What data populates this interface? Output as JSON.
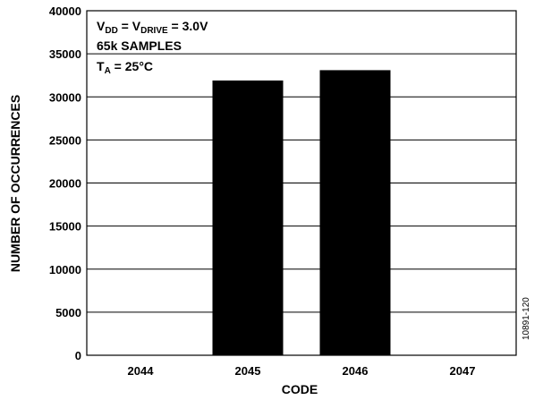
{
  "chart_data": {
    "type": "bar",
    "title": "",
    "xlabel": "CODE",
    "ylabel": "NUMBER OF OCCURRENCES",
    "categories": [
      "2044",
      "2045",
      "2046",
      "2047"
    ],
    "values": [
      0,
      31900,
      33100,
      0
    ],
    "ylim": [
      0,
      40000
    ],
    "yticks": [
      0,
      5000,
      10000,
      15000,
      20000,
      25000,
      30000,
      35000,
      40000
    ],
    "grid": true,
    "bar_color": "#000000",
    "annotation": {
      "vdd": "V",
      "vdd_sub": "DD",
      "eq1": " = V",
      "vdrive_sub": "DRIVE",
      "eq2": " = 3.0V",
      "samples": "65k SAMPLES",
      "ta": "T",
      "ta_sub": "A",
      "ta_value": " = 25°C"
    },
    "figure_id": "10891-120"
  }
}
